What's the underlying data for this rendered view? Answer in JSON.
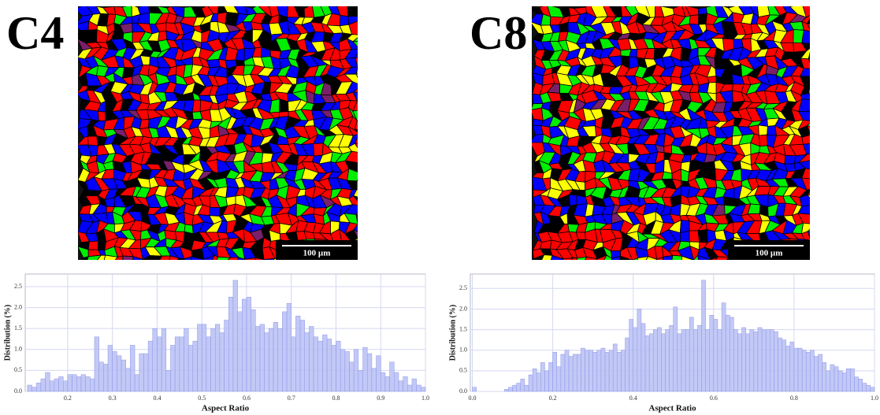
{
  "panel_labels": [
    "C4",
    "C8"
  ],
  "scale_bars": [
    "100 µm",
    "100 µm"
  ],
  "chart_data": [
    {
      "type": "histogram",
      "x_label": "Aspect Ratio",
      "y_label": "Distribution (%)",
      "color": "#b9bff5",
      "grid": true,
      "bins": [
        0.11,
        0.12,
        0.13,
        0.14,
        0.15,
        0.16,
        0.17,
        0.18,
        0.19,
        0.2,
        0.21,
        0.22,
        0.23,
        0.24,
        0.25,
        0.26,
        0.27,
        0.28,
        0.29,
        0.3,
        0.31,
        0.32,
        0.33,
        0.34,
        0.35,
        0.36,
        0.37,
        0.38,
        0.39,
        0.4,
        0.41,
        0.42,
        0.43,
        0.44,
        0.45,
        0.46,
        0.47,
        0.48,
        0.49,
        0.5,
        0.51,
        0.52,
        0.53,
        0.54,
        0.55,
        0.56,
        0.57,
        0.58,
        0.59,
        0.6,
        0.61,
        0.62,
        0.63,
        0.64,
        0.65,
        0.66,
        0.67,
        0.68,
        0.69,
        0.7,
        0.71,
        0.72,
        0.73,
        0.74,
        0.75,
        0.76,
        0.77,
        0.78,
        0.79,
        0.8,
        0.81,
        0.82,
        0.83,
        0.84,
        0.85,
        0.86,
        0.87,
        0.88,
        0.89,
        0.9,
        0.91,
        0.92,
        0.93,
        0.94,
        0.95,
        0.96,
        0.97,
        0.98,
        0.99,
        1.0
      ],
      "values": [
        0.15,
        0.1,
        0.2,
        0.3,
        0.45,
        0.25,
        0.3,
        0.35,
        0.25,
        0.4,
        0.4,
        0.35,
        0.4,
        0.35,
        0.3,
        1.3,
        0.7,
        0.65,
        1.1,
        0.95,
        0.85,
        0.75,
        0.55,
        1.1,
        0.4,
        0.9,
        0.9,
        1.2,
        1.5,
        1.3,
        1.5,
        0.5,
        1.1,
        1.3,
        1.3,
        1.5,
        1.1,
        1.2,
        1.6,
        1.6,
        1.3,
        1.5,
        1.6,
        1.4,
        1.7,
        2.25,
        2.65,
        1.9,
        2.2,
        2.25,
        1.95,
        1.55,
        1.6,
        1.4,
        1.5,
        1.65,
        1.5,
        1.9,
        2.1,
        1.3,
        1.8,
        1.7,
        1.4,
        1.55,
        1.3,
        1.2,
        1.35,
        1.25,
        1.1,
        1.2,
        1.0,
        0.95,
        0.7,
        1.0,
        0.5,
        1.05,
        0.9,
        0.55,
        0.85,
        0.45,
        0.35,
        0.7,
        0.45,
        0.25,
        0.35,
        0.15,
        0.3,
        0.15,
        0.1
      ],
      "xlim": [
        0.105,
        1.0
      ],
      "ylim": [
        0,
        2.8
      ],
      "xticks": [
        0.2,
        0.3,
        0.4,
        0.5,
        0.6,
        0.7,
        0.8,
        0.9,
        {
          "value": 1,
          "label": "1.0"
        }
      ],
      "yticks": [
        {
          "value": 0,
          "label": "0.0"
        },
        0.5,
        {
          "value": 1,
          "label": "1.0"
        },
        1.5,
        {
          "value": 2,
          "label": "2.0"
        },
        2.5
      ]
    },
    {
      "type": "histogram",
      "x_label": "Aspect Ratio",
      "y_label": "Distribution (%)",
      "color": "#b9bff5",
      "grid": true,
      "bins": [
        0,
        0.01,
        0.02,
        0.03,
        0.04,
        0.05,
        0.06,
        0.07,
        0.08,
        0.09,
        0.1,
        0.11,
        0.12,
        0.13,
        0.14,
        0.15,
        0.16,
        0.17,
        0.18,
        0.19,
        0.2,
        0.21,
        0.22,
        0.23,
        0.24,
        0.25,
        0.26,
        0.27,
        0.28,
        0.29,
        0.3,
        0.31,
        0.32,
        0.33,
        0.34,
        0.35,
        0.36,
        0.37,
        0.38,
        0.39,
        0.4,
        0.41,
        0.42,
        0.43,
        0.44,
        0.45,
        0.46,
        0.47,
        0.48,
        0.49,
        0.5,
        0.51,
        0.52,
        0.53,
        0.54,
        0.55,
        0.56,
        0.57,
        0.58,
        0.59,
        0.6,
        0.61,
        0.62,
        0.63,
        0.64,
        0.65,
        0.66,
        0.67,
        0.68,
        0.69,
        0.7,
        0.71,
        0.72,
        0.73,
        0.74,
        0.75,
        0.76,
        0.77,
        0.78,
        0.79,
        0.8,
        0.81,
        0.82,
        0.83,
        0.84,
        0.85,
        0.86,
        0.87,
        0.88,
        0.89,
        0.9,
        0.91,
        0.92,
        0.93,
        0.94,
        0.95,
        0.96,
        0.97,
        0.98,
        0.99,
        1.0
      ],
      "values": [
        0.1,
        0,
        0,
        0,
        0,
        0,
        0,
        0,
        0.05,
        0.1,
        0.15,
        0.2,
        0.3,
        0.15,
        0.4,
        0.55,
        0.45,
        0.7,
        0.5,
        0.7,
        0.95,
        0.6,
        0.9,
        1.0,
        0.85,
        0.9,
        0.9,
        1.05,
        1.0,
        1.0,
        0.95,
        1.0,
        1.05,
        0.95,
        1.0,
        1.15,
        0.95,
        1.0,
        1.3,
        1.75,
        1.55,
        2.0,
        1.65,
        1.35,
        1.4,
        1.5,
        1.55,
        1.4,
        1.5,
        1.6,
        2.05,
        1.4,
        1.5,
        1.5,
        1.8,
        1.5,
        1.6,
        2.7,
        1.5,
        1.85,
        1.75,
        1.5,
        2.15,
        1.85,
        1.8,
        1.5,
        1.4,
        1.55,
        1.4,
        1.5,
        1.45,
        1.55,
        1.5,
        1.5,
        1.5,
        1.45,
        1.3,
        1.25,
        1.1,
        1.2,
        1.05,
        1.05,
        1.0,
        0.95,
        1.0,
        0.85,
        0.9,
        0.7,
        0.5,
        0.65,
        0.6,
        0.5,
        0.45,
        0.55,
        0.55,
        0.35,
        0.3,
        0.2,
        0.15,
        0.1
      ],
      "xlim": [
        -0.005,
        1.0
      ],
      "ylim": [
        0,
        2.85
      ],
      "xticks": [
        {
          "value": 0,
          "label": "0.0"
        },
        0.2,
        0.4,
        0.6,
        0.8,
        {
          "value": 1,
          "label": "1.0"
        }
      ],
      "yticks": [
        {
          "value": 0,
          "label": "0.0"
        },
        0.5,
        {
          "value": 1,
          "label": "1.0"
        },
        1.5,
        {
          "value": 2,
          "label": "2.0"
        },
        2.5
      ]
    }
  ]
}
